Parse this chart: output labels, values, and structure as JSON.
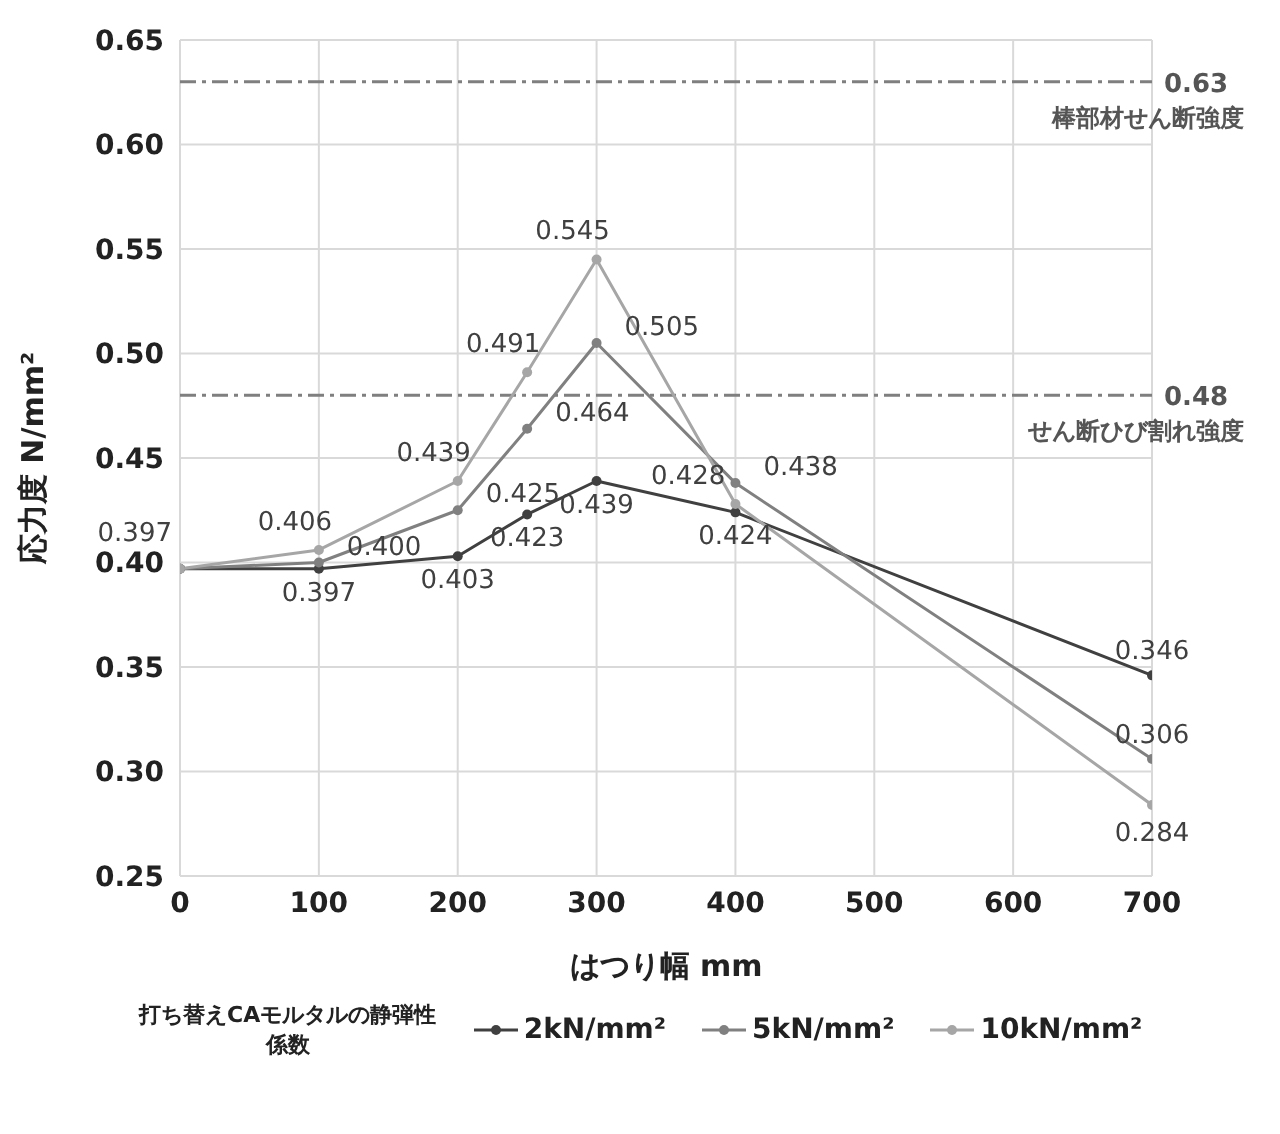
{
  "chart_data": {
    "type": "line",
    "xlabel": "はつり幅 mm",
    "ylabel": "応力度 N/mm²",
    "legend_title": "打ち替えCAモルタルの静弾性係数",
    "x": [
      0,
      100,
      200,
      250,
      300,
      400,
      700
    ],
    "series": [
      {
        "name": "2kN/mm²",
        "color": "#404040",
        "values": [
          0.397,
          0.397,
          0.403,
          0.423,
          0.439,
          0.424,
          0.346
        ],
        "value_labels": [
          "0.397",
          "0.397",
          "0.403",
          "0.423",
          "0.439",
          "0.424",
          "0.346"
        ]
      },
      {
        "name": "5kN/mm²",
        "color": "#808080",
        "values": [
          0.397,
          0.4,
          0.425,
          0.464,
          0.505,
          0.438,
          0.306
        ],
        "value_labels": [
          null,
          "0.400",
          "0.425",
          "0.464",
          "0.505",
          "0.438",
          "0.306"
        ]
      },
      {
        "name": "10kN/mm²",
        "color": "#a6a6a6",
        "values": [
          0.397,
          0.406,
          0.439,
          0.491,
          0.545,
          0.428,
          0.284
        ],
        "value_labels": [
          null,
          "0.406",
          "0.439",
          "0.491",
          "0.545",
          "0.428",
          "0.284"
        ]
      }
    ],
    "xlim": [
      0,
      700
    ],
    "xticks": [
      0,
      100,
      200,
      300,
      400,
      500,
      600,
      700
    ],
    "ylim": [
      0.25,
      0.65
    ],
    "yticks": [
      0.25,
      {
        "value": 0.3,
        "label": "0.30"
      },
      0.35,
      {
        "value": 0.4,
        "label": "0.40"
      },
      0.45,
      {
        "value": 0.5,
        "label": "0.50"
      },
      0.55,
      {
        "value": 0.6,
        "label": "0.60"
      },
      0.65
    ],
    "ref_lines": [
      {
        "axis": "y",
        "value": 0.63,
        "label": "0.63",
        "color": "#7f7f7f",
        "line_style": "dashdot"
      },
      {
        "axis": "y",
        "value": 0.48,
        "label": "0.48",
        "color": "#7f7f7f",
        "line_style": "dashdot"
      }
    ],
    "annotations": [
      "棒部材せん断強度",
      "せん断ひび割れ強度"
    ],
    "grid": true,
    "legend": "bottom",
    "marker": "circle",
    "line_style": "solid"
  }
}
